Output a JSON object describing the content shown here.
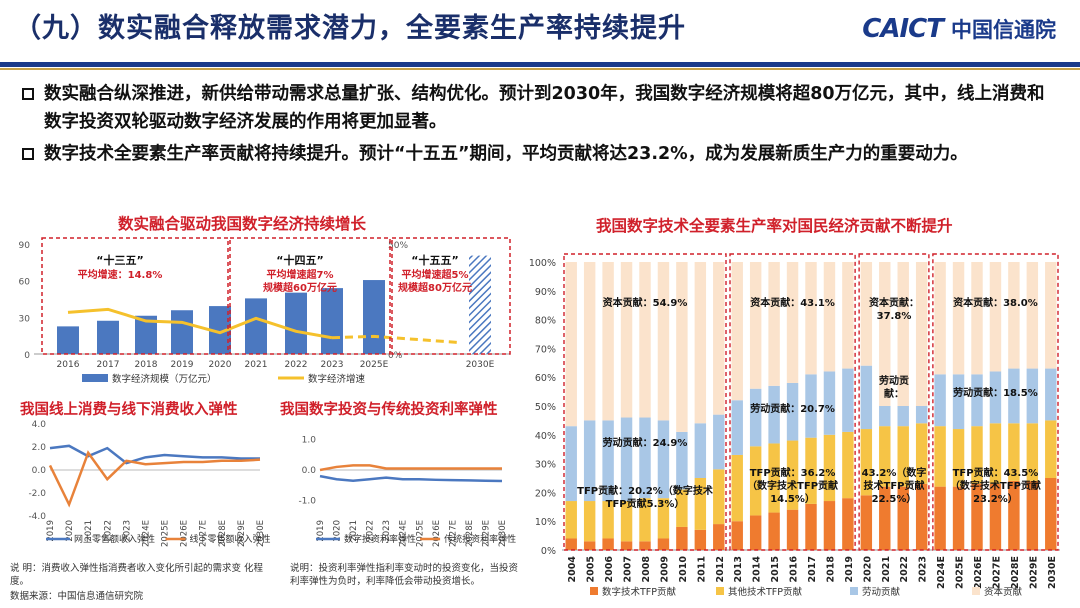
{
  "header": {
    "title": "（九）数实融合释放需求潜力，全要素生产率持续提升",
    "logo_en": "CAICT",
    "logo_cn": "中国信通院"
  },
  "bullets": [
    "数实融合纵深推进，新供给带动需求总量扩张、结构优化。预计到2030年，我国数字经济规模将超80万亿元，其中，线上消费和数字投资双轮驱动数字经济发展的作用将更加显著。",
    "数字技术全要素生产率贡献将持续提升。预计“十五五”期间，平均贡献将达23.2%，成为发展新质生产力的重要动力。"
  ],
  "notes": {
    "consumption": "说 明：消费收入弹性指消费者收入变化所引起的需求变 化程度。",
    "investment": "说明：投资利率弹性指利率变动时的投资变化，当投资利率弹性为负时，利率降低会带动投资增长。",
    "source": "数据来源：中国信息通信研究院"
  },
  "chart_data": [
    {
      "type": "bar",
      "title": "数实融合驱动我国数字经济持续增长",
      "categories": [
        "2016",
        "2017",
        "2018",
        "2019",
        "2020",
        "2021",
        "2022",
        "2023",
        "2025E",
        "2030E"
      ],
      "series": [
        {
          "name": "数字经济规模（万亿元）",
          "values": [
            22.6,
            27.2,
            31.3,
            35.8,
            39.2,
            45.5,
            50.2,
            53.9,
            60.5,
            80.5
          ]
        },
        {
          "name": "数字经济增速",
          "values": [
            18.9,
            20.3,
            15.0,
            14.4,
            9.7,
            16.2,
            10.3,
            7.4,
            8.0,
            5.2
          ]
        }
      ],
      "y_left_ticks": [
        "0",
        "30",
        "60",
        "90"
      ],
      "y_right_ticks": [
        "0%",
        "50%"
      ],
      "ylim_left": [
        0,
        90
      ],
      "ylim_right": [
        0,
        50
      ],
      "periods": [
        {
          "label": "“十三五”",
          "sub1": "平均增速：14.8%",
          "sub2": ""
        },
        {
          "label": "“十四五”",
          "sub1": "平均增速超7%",
          "sub2": "规模超60万亿元"
        },
        {
          "label": "“十五五”",
          "sub1": "平均增速超5%",
          "sub2": "规模超80万亿元"
        }
      ],
      "colors": {
        "bar": "#4b78c0",
        "line": "#f5c12c"
      }
    },
    {
      "type": "line",
      "title": "我国线上消费与线下消费收入弹性",
      "categories": [
        "2019",
        "2020",
        "2021",
        "2022",
        "2023",
        "2024E",
        "2025E",
        "2026E",
        "2027E",
        "2028E",
        "2029E",
        "2030E"
      ],
      "series": [
        {
          "name": "网上零售额收入弹性",
          "values": [
            1.9,
            2.1,
            1.2,
            1.9,
            0.6,
            1.1,
            1.3,
            1.2,
            1.1,
            1.1,
            1.0,
            1.0
          ]
        },
        {
          "name": "线下零售额收入弹性",
          "values": [
            0.4,
            -3.0,
            1.5,
            -0.8,
            0.8,
            0.5,
            0.6,
            0.7,
            0.7,
            0.8,
            0.8,
            0.9
          ]
        }
      ],
      "y_ticks": [
        "4.0",
        "2.0",
        "0.0",
        "-2.0",
        "-4.0"
      ],
      "ylim": [
        -4,
        4
      ],
      "colors": {
        "a": "#4b78c0",
        "b": "#e8823a"
      }
    },
    {
      "type": "line",
      "title": "我国数字投资与传统投资利率弹性",
      "categories": [
        "2019",
        "2020",
        "2021",
        "2022",
        "2023",
        "2024E",
        "2025E",
        "2026E",
        "2027E",
        "2028E",
        "2029E",
        "2030E"
      ],
      "series": [
        {
          "name": "数字投资利率弹性",
          "values": [
            -0.2,
            -0.3,
            -0.35,
            -0.3,
            -0.25,
            -0.3,
            -0.3,
            -0.32,
            -0.33,
            -0.34,
            -0.35,
            -0.36
          ]
        },
        {
          "name": "传统投资利率弹性",
          "values": [
            0.0,
            0.1,
            0.15,
            0.15,
            0.05,
            0.05,
            0.05,
            0.05,
            0.05,
            0.05,
            0.05,
            0.05
          ]
        }
      ],
      "y_ticks": [
        "1.0",
        "0.0",
        "-1.0"
      ],
      "ylim": [
        -1.5,
        1.5
      ],
      "colors": {
        "a": "#4b78c0",
        "b": "#e8823a"
      }
    },
    {
      "type": "bar",
      "stacked": true,
      "title": "我国数字技术全要素生产率对国民经济贡献不断提升",
      "categories": [
        "2004",
        "2005",
        "2006",
        "2007",
        "2008",
        "2009",
        "2010",
        "2011",
        "2012",
        "2013",
        "2014",
        "2015",
        "2016",
        "2017",
        "2018",
        "2019",
        "2020",
        "2021",
        "2022",
        "2023",
        "2024E",
        "2025E",
        "2026E",
        "2027E",
        "2028E",
        "2029E",
        "2030E"
      ],
      "series": [
        {
          "name": "数字技术TFP贡献",
          "values": [
            4,
            3,
            4,
            3,
            3,
            4,
            8,
            7,
            9,
            10,
            12,
            13,
            14,
            16,
            17,
            18,
            19,
            22,
            22,
            23,
            22,
            22,
            23,
            23,
            24,
            24,
            25
          ]
        },
        {
          "name": "其他技术TFP贡献",
          "values": [
            13,
            14,
            13,
            14,
            15,
            14,
            13,
            18,
            19,
            23,
            24,
            24,
            24,
            23,
            23,
            23,
            23,
            21,
            21,
            21,
            21,
            20,
            20,
            21,
            20,
            20,
            20
          ]
        },
        {
          "name": "劳动贡献",
          "values": [
            26,
            28,
            28,
            29,
            28,
            27,
            20,
            19,
            19,
            19,
            20,
            20,
            20,
            22,
            22,
            22,
            22,
            7,
            7,
            6,
            18,
            19,
            18,
            18,
            19,
            19,
            18
          ]
        },
        {
          "name": "资本贡献",
          "values": [
            57,
            55,
            55,
            54,
            54,
            55,
            59,
            56,
            53,
            48,
            44,
            43,
            42,
            39,
            38,
            37,
            36,
            50,
            50,
            50,
            39,
            39,
            39,
            38,
            37,
            37,
            37
          ]
        }
      ],
      "y_ticks": [
        "0%",
        "10%",
        "20%",
        "30%",
        "40%",
        "50%",
        "60%",
        "70%",
        "80%",
        "90%",
        "100%"
      ],
      "ylim": [
        0,
        100
      ],
      "annotations": [
        {
          "group": 0,
          "capital": "资本贡献：54.9%",
          "labor": "劳动贡献：24.9%",
          "tfp1": "TFP贡献：20.2%（数字技术",
          "tfp2": "TFP贡献5.3%）"
        },
        {
          "group": 1,
          "capital": "资本贡献：43.1%",
          "labor": "劳动贡献：20.7%",
          "tfp1": "TFP贡献：36.2%",
          "tfp2": "（数字技术TFP贡献",
          "tfp3": "14.5%）"
        },
        {
          "group": 2,
          "capital": "资本贡献：",
          "capital2": "37.8%",
          "labor": "劳动贡",
          "labor2": "献：",
          "tfp1": "43.2%（数字",
          "tfp2": "技术TFP贡献",
          "tfp3": "22.5%）"
        },
        {
          "group": 3,
          "capital": "资本贡献：38.0%",
          "labor": "劳动贡献：18.5%",
          "tfp1": "TFP贡献：43.5%",
          "tfp2": "（数字技术TFP贡献",
          "tfp3": "23.2%）"
        }
      ],
      "colors": {
        "digital": "#ef7b2f",
        "other": "#f6c446",
        "labor": "#a9c7e6",
        "capital": "#fbe3cc"
      }
    }
  ]
}
